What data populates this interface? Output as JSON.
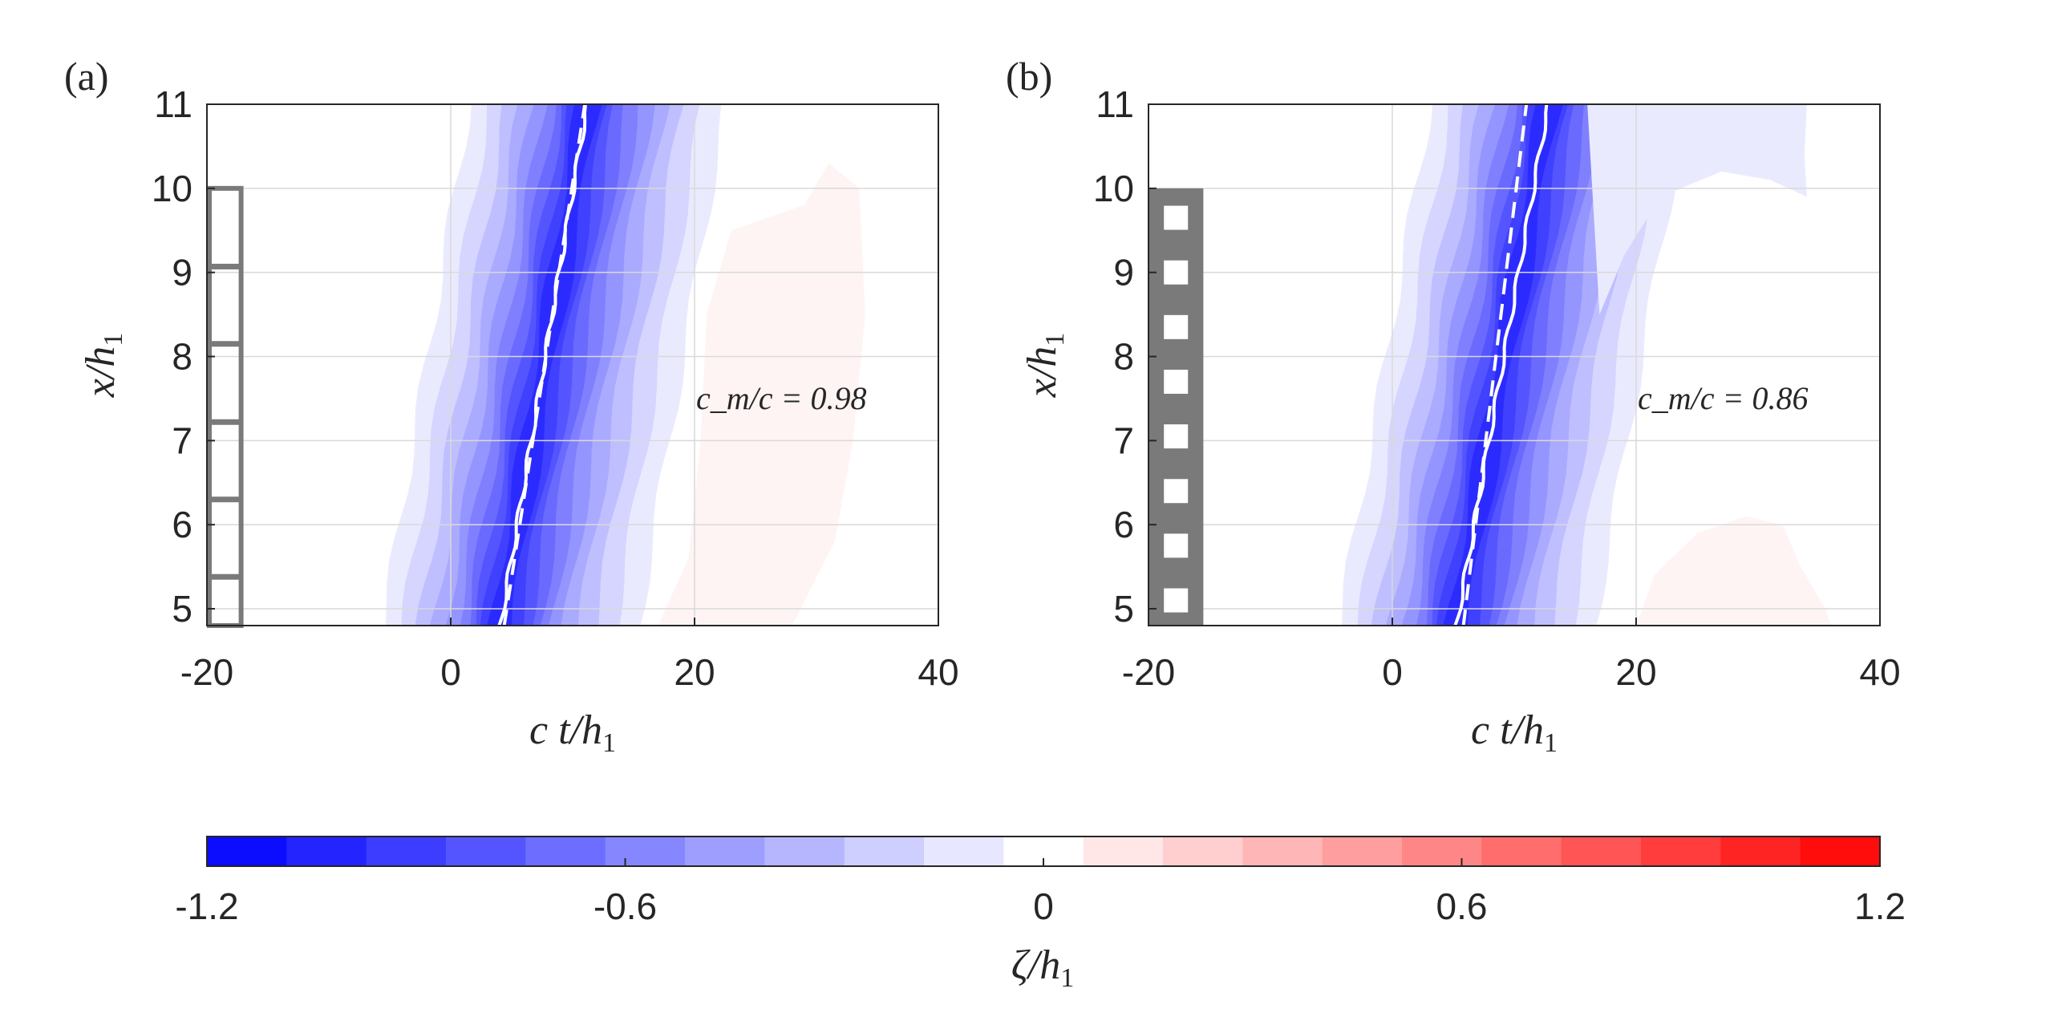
{
  "chart_data": [
    {
      "type": "heatmap",
      "panel_label": "(a)",
      "xlabel": "c t/h",
      "xlabel_sub": "1",
      "ylabel": "x/h",
      "ylabel_sub": "1",
      "xlim": [
        -20,
        40
      ],
      "ylim": [
        4.8,
        11
      ],
      "xticks": [
        "-20",
        "0",
        "20",
        "40"
      ],
      "yticks": [
        "5",
        "6",
        "7",
        "8",
        "9",
        "10",
        "11"
      ],
      "grid": true,
      "annotation": "c_m/c = 0.98",
      "trough_at_x5": 4.3,
      "trough_at_x11": 11.2,
      "dashed_at_x5": 4.6,
      "dashed_at_x11": 11.0,
      "red_region_zeta": 0.05,
      "obstacle": {
        "style": "rungs",
        "x_from": -20,
        "x_to": -17,
        "y_top": 10,
        "rungs_y": [
          9.07,
          8.15,
          7.22,
          6.3,
          5.38
        ]
      }
    },
    {
      "type": "heatmap",
      "panel_label": "(b)",
      "xlabel": "c t/h",
      "xlabel_sub": "1",
      "ylabel": "x/h",
      "ylabel_sub": "1",
      "xlim": [
        -20,
        40
      ],
      "ylim": [
        4.8,
        11
      ],
      "xticks": [
        "-20",
        "0",
        "20",
        "40"
      ],
      "yticks": [
        "5",
        "6",
        "7",
        "8",
        "9",
        "10",
        "11"
      ],
      "grid": true,
      "annotation": "c_m/c = 0.86",
      "trough_at_x5": 5.5,
      "trough_at_x11": 12.8,
      "dashed_at_x5": 6.0,
      "dashed_at_x11": 11.0,
      "red_region_zeta": 0.05,
      "obstacle": {
        "style": "holes",
        "x_from": -20,
        "x_to": -15.5,
        "y_top": 10,
        "holes_y": [
          9.65,
          9.0,
          8.35,
          7.7,
          7.05,
          6.4,
          5.75,
          5.1
        ]
      }
    }
  ],
  "colorbar": {
    "label": "ζ/h",
    "label_sub": "1",
    "range": [
      -1.2,
      1.2
    ],
    "ticks": [
      "-1.2",
      "-0.6",
      "0",
      "0.6",
      "1.2"
    ],
    "levels": 21,
    "color_negative": "#0000ff",
    "color_zero": "#ffffff",
    "color_positive": "#ff0000"
  }
}
